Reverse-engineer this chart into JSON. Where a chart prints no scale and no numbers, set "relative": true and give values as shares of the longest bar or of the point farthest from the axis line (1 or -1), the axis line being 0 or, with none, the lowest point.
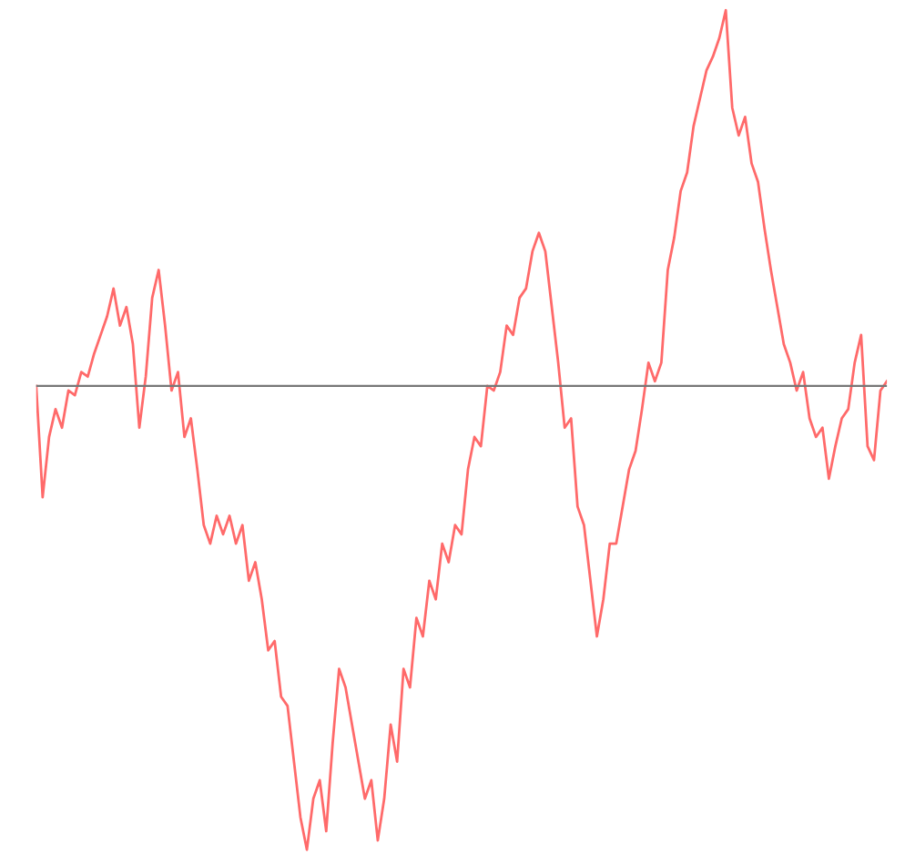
{
  "chart_data": {
    "type": "line",
    "relative": true,
    "grid": false,
    "legend": false,
    "marker": "none",
    "line_style": "solid",
    "categories": [
      null,
      null,
      null,
      null,
      null,
      null,
      null,
      null,
      null,
      null,
      null,
      null,
      null,
      null,
      null,
      null,
      null,
      null,
      null,
      null,
      null,
      null,
      null,
      null,
      null,
      null,
      null,
      null,
      null,
      null,
      null,
      null,
      null,
      null,
      null,
      null,
      null,
      null,
      null,
      null,
      null,
      null,
      null,
      null,
      null,
      null,
      null,
      null,
      null,
      null,
      null,
      null,
      null,
      null,
      null,
      null,
      null,
      null,
      null,
      null,
      null,
      null,
      null,
      null,
      null,
      null,
      null,
      null,
      null,
      null,
      null,
      null,
      null,
      null,
      null,
      null,
      null,
      null,
      null,
      null,
      null,
      null,
      null,
      null,
      null,
      null,
      null,
      null,
      null,
      null,
      null,
      null,
      null,
      null,
      null,
      null,
      null,
      null,
      null,
      null,
      null,
      null,
      null,
      null,
      null,
      null,
      null,
      null,
      null,
      null,
      null,
      null,
      null,
      null,
      null,
      null,
      null,
      null,
      null,
      null,
      null,
      null,
      null,
      null,
      null,
      null,
      null,
      null,
      null,
      null,
      null,
      null,
      null
    ],
    "series": [
      {
        "color": "#ff6a6a",
        "values": [
          0,
          -0.24,
          -0.11,
          -0.05,
          -0.09,
          -0.01,
          -0.02,
          0.03,
          0.02,
          0.07,
          0.11,
          0.15,
          0.21,
          0.13,
          0.17,
          0.09,
          -0.09,
          0.02,
          0.19,
          0.25,
          0.13,
          -0.01,
          0.03,
          -0.11,
          -0.07,
          -0.18,
          -0.3,
          -0.34,
          -0.28,
          -0.32,
          -0.28,
          -0.34,
          -0.3,
          -0.42,
          -0.38,
          -0.46,
          -0.57,
          -0.55,
          -0.67,
          -0.69,
          -0.81,
          -0.93,
          -1,
          -0.89,
          -0.85,
          -0.96,
          -0.77,
          -0.61,
          -0.65,
          -0.73,
          -0.81,
          -0.89,
          -0.85,
          -0.98,
          -0.89,
          -0.73,
          -0.81,
          -0.61,
          -0.65,
          -0.5,
          -0.54,
          -0.42,
          -0.46,
          -0.34,
          -0.38,
          -0.3,
          -0.32,
          -0.18,
          -0.11,
          -0.13,
          0,
          -0.01,
          0.03,
          0.13,
          0.11,
          0.19,
          0.21,
          0.29,
          0.33,
          0.29,
          0.17,
          0.05,
          -0.09,
          -0.07,
          -0.26,
          -0.3,
          -0.42,
          -0.54,
          -0.46,
          -0.34,
          -0.34,
          -0.26,
          -0.18,
          -0.14,
          -0.05,
          0.05,
          0.01,
          0.05,
          0.25,
          0.32,
          0.42,
          0.46,
          0.56,
          0.62,
          0.68,
          0.71,
          0.75,
          0.81,
          0.6,
          0.54,
          0.58,
          0.48,
          0.44,
          0.34,
          0.25,
          0.17,
          0.09,
          0.05,
          -0.01,
          0.03,
          -0.07,
          -0.11,
          -0.09,
          -0.2,
          -0.13,
          -0.07,
          -0.05,
          0.05,
          0.11,
          -0.13,
          -0.16,
          -0.01,
          0.01
        ]
      }
    ]
  }
}
